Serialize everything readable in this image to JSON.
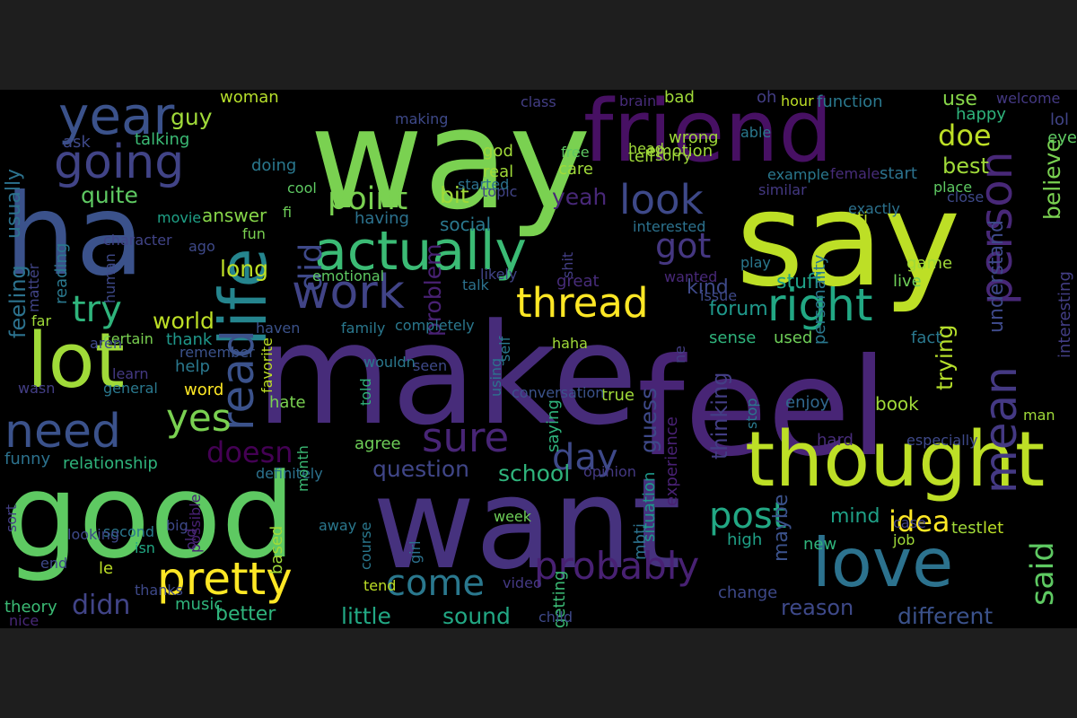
{
  "words": [
    {
      "text": "way",
      "color": "#7ad151"
    },
    {
      "text": "say",
      "color": "#bddf26"
    },
    {
      "text": "make",
      "color": "#472c7a"
    },
    {
      "text": "feel",
      "color": "#482576"
    },
    {
      "text": "good",
      "color": "#5ec962"
    },
    {
      "text": "want",
      "color": "#46327e"
    },
    {
      "text": "ha",
      "color": "#3b528b"
    },
    {
      "text": "friend",
      "color": "#471063"
    },
    {
      "text": "thought",
      "color": "#bddf26"
    },
    {
      "text": "life",
      "color": "#25858e"
    },
    {
      "text": "lot",
      "color": "#a0da39"
    },
    {
      "text": "love",
      "color": "#2c728e"
    },
    {
      "text": "actually",
      "color": "#3bbb75"
    },
    {
      "text": "year",
      "color": "#3b528b"
    },
    {
      "text": "going",
      "color": "#414487"
    },
    {
      "text": "pretty",
      "color": "#fde725"
    },
    {
      "text": "need",
      "color": "#3b528b"
    },
    {
      "text": "person",
      "color": "#482878"
    },
    {
      "text": "mean",
      "color": "#443983"
    },
    {
      "text": "work",
      "color": "#414487"
    },
    {
      "text": "right",
      "color": "#22a884"
    },
    {
      "text": "read",
      "color": "#3b528b"
    },
    {
      "text": "thread",
      "color": "#fde725"
    },
    {
      "text": "post",
      "color": "#22a884"
    },
    {
      "text": "sure",
      "color": "#482576"
    },
    {
      "text": "probably",
      "color": "#482173"
    },
    {
      "text": "yes",
      "color": "#7ad151"
    },
    {
      "text": "come",
      "color": "#2a788e"
    },
    {
      "text": "day",
      "color": "#3e4989"
    },
    {
      "text": "look",
      "color": "#3e4989"
    },
    {
      "text": "try",
      "color": "#2fb47c"
    },
    {
      "text": "point",
      "color": "#7ad151"
    },
    {
      "text": "got",
      "color": "#453781"
    },
    {
      "text": "said",
      "color": "#5ec962"
    },
    {
      "text": "did",
      "color": "#3e4989"
    },
    {
      "text": "idea",
      "color": "#fde725"
    },
    {
      "text": "doe",
      "color": "#bddf26"
    },
    {
      "text": "little",
      "color": "#22a884"
    },
    {
      "text": "sound",
      "color": "#22a884"
    },
    {
      "text": "doesn",
      "color": "#440154"
    },
    {
      "text": "didn",
      "color": "#414487"
    },
    {
      "text": "different",
      "color": "#3b528b"
    },
    {
      "text": "use",
      "color": "#86d549"
    },
    {
      "text": "best",
      "color": "#a0da39"
    },
    {
      "text": "believe",
      "color": "#7ad151"
    },
    {
      "text": "school",
      "color": "#2fb47c"
    },
    {
      "text": "world",
      "color": "#bddf26"
    },
    {
      "text": "guess",
      "color": "#3e4989"
    },
    {
      "text": "mind",
      "color": "#1fa187"
    },
    {
      "text": "trying",
      "color": "#b5de2b"
    },
    {
      "text": "understand",
      "color": "#3e4989"
    },
    {
      "text": "question",
      "color": "#404688"
    },
    {
      "text": "kind",
      "color": "#3e4989"
    },
    {
      "text": "forum",
      "color": "#1f988b"
    },
    {
      "text": "stuff",
      "color": "#1fa187"
    },
    {
      "text": "reason",
      "color": "#3e4989"
    },
    {
      "text": "guy",
      "color": "#a0da39"
    },
    {
      "text": "long",
      "color": "#bddf26"
    },
    {
      "text": "bit",
      "color": "#a0da39"
    },
    {
      "text": "yeah",
      "color": "#482878"
    },
    {
      "text": "quite",
      "color": "#5ec962"
    },
    {
      "text": "feeling",
      "color": "#2c728e"
    },
    {
      "text": "usually",
      "color": "#2c728e"
    },
    {
      "text": "answer",
      "color": "#86d549"
    },
    {
      "text": "social",
      "color": "#2a788e"
    },
    {
      "text": "better",
      "color": "#2fb47c"
    },
    {
      "text": "thinking",
      "color": "#433e85"
    },
    {
      "text": "book",
      "color": "#a0da39"
    },
    {
      "text": "hard",
      "color": "#472c7a"
    },
    {
      "text": "sense",
      "color": "#2fb47c"
    },
    {
      "text": "used",
      "color": "#6ece58"
    },
    {
      "text": "fact",
      "color": "#2a788e"
    },
    {
      "text": "maybe",
      "color": "#3b528b"
    },
    {
      "text": "problem",
      "color": "#482173"
    },
    {
      "text": "wrong",
      "color": "#a0da39"
    },
    {
      "text": "tell",
      "color": "#a0da39"
    },
    {
      "text": "emotion",
      "color": "#a0da39"
    },
    {
      "text": "start",
      "color": "#2c728e"
    },
    {
      "text": "function",
      "color": "#2a788e"
    },
    {
      "text": "true",
      "color": "#a0da39"
    },
    {
      "text": "relationship",
      "color": "#2fb47c"
    },
    {
      "text": "word",
      "color": "#fde725"
    },
    {
      "text": "help",
      "color": "#2a788e"
    },
    {
      "text": "hate",
      "color": "#7ad151"
    },
    {
      "text": "agree",
      "color": "#6ece58"
    },
    {
      "text": "thank",
      "color": "#1f988b"
    },
    {
      "text": "talk",
      "color": "#2c728e"
    },
    {
      "text": "bad",
      "color": "#a0da39"
    },
    {
      "text": "happy",
      "color": "#2fb47c"
    },
    {
      "text": "woman",
      "color": "#b5de2b"
    },
    {
      "text": "talking",
      "color": "#3bbb75"
    },
    {
      "text": "ask",
      "color": "#3e4989"
    },
    {
      "text": "doing",
      "color": "#2a788e"
    },
    {
      "text": "having",
      "color": "#2c728e"
    },
    {
      "text": "real",
      "color": "#a0da39"
    },
    {
      "text": "god",
      "color": "#a0da39"
    },
    {
      "text": "care",
      "color": "#a0da39"
    },
    {
      "text": "high",
      "color": "#1fa187"
    },
    {
      "text": "new",
      "color": "#2fb47c"
    },
    {
      "text": "change",
      "color": "#3e4989"
    },
    {
      "text": "test",
      "color": "#a0da39"
    },
    {
      "text": "let",
      "color": "#bddf26"
    },
    {
      "text": "game",
      "color": "#a0da39"
    },
    {
      "text": "live",
      "color": "#6ece58"
    },
    {
      "text": "enjoy",
      "color": "#31688e"
    },
    {
      "text": "experience",
      "color": "#482173"
    },
    {
      "text": "situation",
      "color": "#1f988b"
    },
    {
      "text": "getting",
      "color": "#3bbb75"
    },
    {
      "text": "mbti",
      "color": "#2c728e"
    },
    {
      "text": "saying",
      "color": "#2fb47c"
    },
    {
      "text": "personality",
      "color": "#2a788e"
    },
    {
      "text": "especially",
      "color": "#3e4989"
    },
    {
      "text": "interesting",
      "color": "#433e85"
    },
    {
      "text": "lol",
      "color": "#414487"
    },
    {
      "text": "eye",
      "color": "#5ec962"
    },
    {
      "text": "oh",
      "color": "#433e85"
    },
    {
      "text": "hour",
      "color": "#bddf26"
    },
    {
      "text": "welcome",
      "color": "#443983"
    },
    {
      "text": "class",
      "color": "#433e85"
    },
    {
      "text": "brain",
      "color": "#472c7a"
    },
    {
      "text": "making",
      "color": "#3e4989"
    },
    {
      "text": "free",
      "color": "#5ec962"
    },
    {
      "text": "head",
      "color": "#a0da39"
    },
    {
      "text": "sorry",
      "color": "#a0da39"
    },
    {
      "text": "able",
      "color": "#2a788e"
    },
    {
      "text": "example",
      "color": "#2a788e"
    },
    {
      "text": "female",
      "color": "#472c7a"
    },
    {
      "text": "place",
      "color": "#5ec962"
    },
    {
      "text": "close",
      "color": "#3e4989"
    },
    {
      "text": "similar",
      "color": "#443983"
    },
    {
      "text": "exactly",
      "color": "#2c728e"
    },
    {
      "text": "interested",
      "color": "#2c728e"
    },
    {
      "text": "topic",
      "color": "#414487"
    },
    {
      "text": "started",
      "color": "#2c728e"
    },
    {
      "text": "cool",
      "color": "#5ec962"
    },
    {
      "text": "movie",
      "color": "#1fa187"
    },
    {
      "text": "fi",
      "color": "#6ece58"
    },
    {
      "text": "fun",
      "color": "#7ad151"
    },
    {
      "text": "character",
      "color": "#414487"
    },
    {
      "text": "ago",
      "color": "#3e4989"
    },
    {
      "text": "human",
      "color": "#3e4989"
    },
    {
      "text": "reading",
      "color": "#2a788e"
    },
    {
      "text": "emotional",
      "color": "#5ec962"
    },
    {
      "text": "likely",
      "color": "#414487"
    },
    {
      "text": "shit",
      "color": "#433e85"
    },
    {
      "text": "great",
      "color": "#472c7a"
    },
    {
      "text": "wanted",
      "color": "#482878"
    },
    {
      "text": "issue",
      "color": "#3e4989"
    },
    {
      "text": "play",
      "color": "#2a788e"
    },
    {
      "text": "ti",
      "color": "#bddf26"
    },
    {
      "text": "ne",
      "color": "#433e85"
    },
    {
      "text": "haha",
      "color": "#a0da39"
    },
    {
      "text": "self",
      "color": "#2a788e"
    },
    {
      "text": "using",
      "color": "#2c728e"
    },
    {
      "text": "wouldn",
      "color": "#2a788e"
    },
    {
      "text": "family",
      "color": "#2a788e"
    },
    {
      "text": "completely",
      "color": "#2a788e"
    },
    {
      "text": "haven",
      "color": "#3b528b"
    },
    {
      "text": "matter",
      "color": "#414487"
    },
    {
      "text": "far",
      "color": "#a0da39"
    },
    {
      "text": "certain",
      "color": "#7ad151"
    },
    {
      "text": "aren",
      "color": "#3e4989"
    },
    {
      "text": "remember",
      "color": "#3b528b"
    },
    {
      "text": "wasn",
      "color": "#433e85"
    },
    {
      "text": "learn",
      "color": "#443983"
    },
    {
      "text": "general",
      "color": "#2a788e"
    },
    {
      "text": "favorite",
      "color": "#bddf26"
    },
    {
      "text": "told",
      "color": "#2fb47c"
    },
    {
      "text": "seen",
      "color": "#3e4989"
    },
    {
      "text": "conversation",
      "color": "#3b528b"
    },
    {
      "text": "stop",
      "color": "#2a788e"
    },
    {
      "text": "man",
      "color": "#a0da39"
    },
    {
      "text": "funny",
      "color": "#2c728e"
    },
    {
      "text": "definitely",
      "color": "#2c728e"
    },
    {
      "text": "month",
      "color": "#3bbb75"
    },
    {
      "text": "opinion",
      "color": "#443983"
    },
    {
      "text": "sort",
      "color": "#433e85"
    },
    {
      "text": "big",
      "color": "#3e4989"
    },
    {
      "text": "second",
      "color": "#2a788e"
    },
    {
      "text": "possible",
      "color": "#482173"
    },
    {
      "text": "away",
      "color": "#2a788e"
    },
    {
      "text": "week",
      "color": "#6ece58"
    },
    {
      "text": "old",
      "color": "#482878"
    },
    {
      "text": "looking",
      "color": "#3e4989"
    },
    {
      "text": "isn",
      "color": "#22a884"
    },
    {
      "text": "based",
      "color": "#a0da39"
    },
    {
      "text": "course",
      "color": "#2a788e"
    },
    {
      "text": "girl",
      "color": "#2c728e"
    },
    {
      "text": "case",
      "color": "#414487"
    },
    {
      "text": "job",
      "color": "#a0da39"
    },
    {
      "text": "le",
      "color": "#bddf26"
    },
    {
      "text": "end",
      "color": "#3e4989"
    },
    {
      "text": "thanks",
      "color": "#3e4989"
    },
    {
      "text": "tend",
      "color": "#bddf26"
    },
    {
      "text": "video",
      "color": "#443983"
    },
    {
      "text": "theory",
      "color": "#3bbb75"
    },
    {
      "text": "music",
      "color": "#2fb47c"
    },
    {
      "text": "nice",
      "color": "#482878"
    },
    {
      "text": "child",
      "color": "#3e4989"
    }
  ]
}
